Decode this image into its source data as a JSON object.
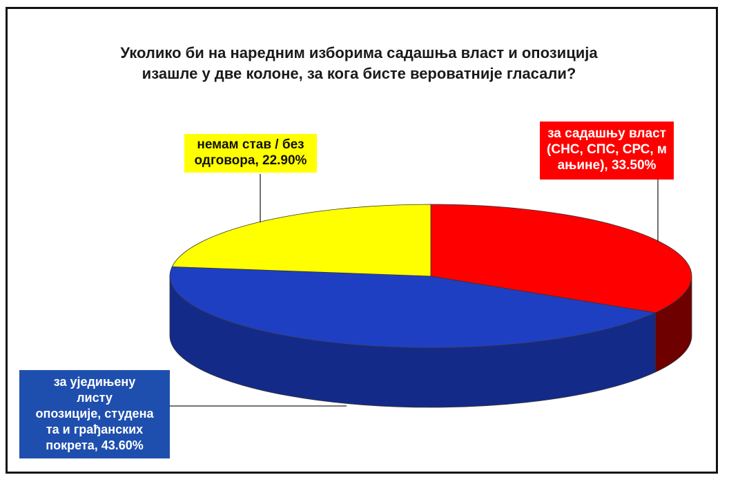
{
  "title": {
    "line1": "Уколико би на наредним изборима садашња власт и опозиција",
    "line2": "изашле у две колоне, за кога бисте вероватније гласали?"
  },
  "labels": {
    "yellow": {
      "line1": "немам став / без",
      "line2": "одговора, 22.90%"
    },
    "red": {
      "line1": "за садашњу власт",
      "line2": "(СНС, СПС, СРС, м",
      "line3": "ањине), 33.50%"
    },
    "blue": {
      "line1": "за уједињену",
      "line2": "листу",
      "line3": "опозиције, студена",
      "line4": "та и грађанских",
      "line5": "покрета, 43.60%"
    }
  },
  "chart_data": {
    "type": "pie",
    "title": "Уколико би на наредним изборима садашња власт и опозиција изашле у две колоне, за кога бисте вероватније гласали?",
    "slices": [
      {
        "label": "за садашњу власт (СНС, СПС, СРС, мањине)",
        "value": 33.5,
        "color": "#ff0000",
        "side_color": "#6e0000"
      },
      {
        "label": "за уједињену листу опозиције, студената и грађанских покрета",
        "value": 43.6,
        "color": "#1f3fc2",
        "side_color": "#142a88"
      },
      {
        "label": "немам став / без одговора",
        "value": 22.9,
        "color": "#ffff00",
        "side_color": "#9b9b00"
      }
    ],
    "unit": "%",
    "style": "3d"
  }
}
